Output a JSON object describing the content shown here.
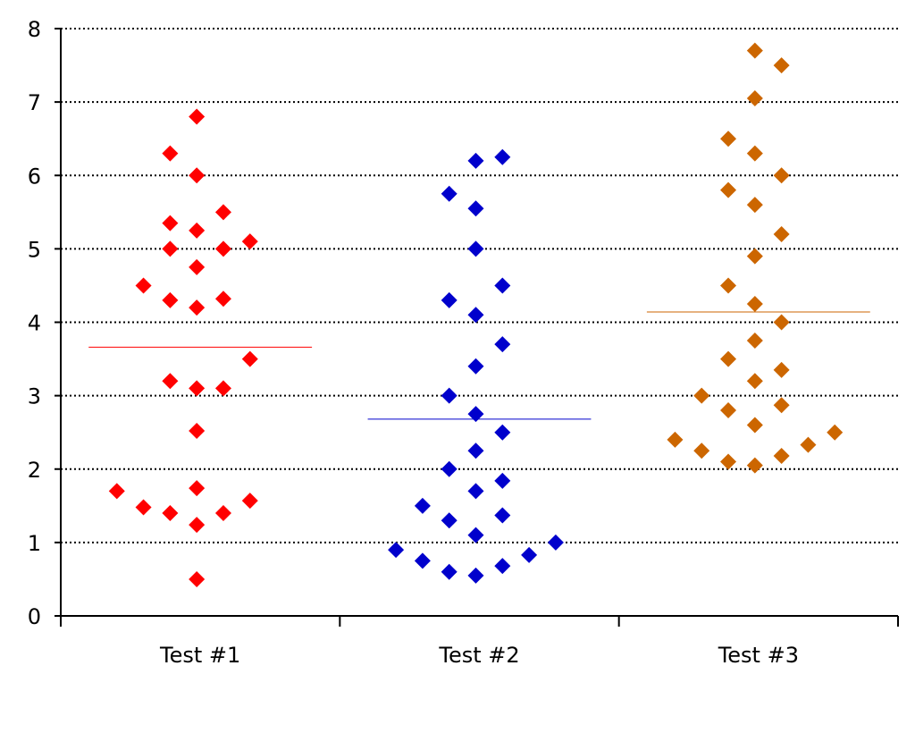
{
  "chart_data": {
    "type": "scatter",
    "title": "",
    "xlabel": "",
    "ylabel": "",
    "ylim": [
      0,
      8
    ],
    "yticks": [
      0,
      1,
      2,
      3,
      4,
      5,
      6,
      7,
      8
    ],
    "grid": "horizontal dotted",
    "categories": [
      "Test #1",
      "Test #2",
      "Test #3"
    ],
    "series": [
      {
        "category": "Test #1",
        "color": "#ff0000",
        "mean": 3.66,
        "points": [
          [
            0,
            6.8
          ],
          [
            -1,
            6.3
          ],
          [
            0,
            6.0
          ],
          [
            -1,
            5.35
          ],
          [
            1,
            5.5
          ],
          [
            0,
            5.25
          ],
          [
            -1,
            5.0
          ],
          [
            1,
            5.0
          ],
          [
            2,
            5.1
          ],
          [
            0,
            4.75
          ],
          [
            -2,
            4.5
          ],
          [
            -1,
            4.3
          ],
          [
            1,
            4.32
          ],
          [
            0,
            4.2
          ],
          [
            2,
            3.5
          ],
          [
            -1,
            3.2
          ],
          [
            0,
            3.1
          ],
          [
            1,
            3.1
          ],
          [
            0,
            2.52
          ],
          [
            -3,
            1.7
          ],
          [
            0,
            1.74
          ],
          [
            2,
            1.57
          ],
          [
            -2,
            1.48
          ],
          [
            -1,
            1.4
          ],
          [
            1,
            1.4
          ],
          [
            0,
            1.24
          ],
          [
            0,
            0.5
          ]
        ]
      },
      {
        "category": "Test #2",
        "color": "#0000cc",
        "mean": 2.68,
        "points": [
          [
            1,
            6.25
          ],
          [
            0,
            6.2
          ],
          [
            -1,
            5.75
          ],
          [
            0,
            5.55
          ],
          [
            0,
            5.0
          ],
          [
            1,
            4.5
          ],
          [
            -1,
            4.3
          ],
          [
            0,
            4.1
          ],
          [
            1,
            3.7
          ],
          [
            0,
            3.4
          ],
          [
            -1,
            3.0
          ],
          [
            0,
            2.75
          ],
          [
            1,
            2.5
          ],
          [
            0,
            2.25
          ],
          [
            -1,
            2.0
          ],
          [
            1,
            1.84
          ],
          [
            0,
            1.7
          ],
          [
            -2,
            1.5
          ],
          [
            1,
            1.37
          ],
          [
            -1,
            1.3
          ],
          [
            0,
            1.1
          ],
          [
            3,
            1.0
          ],
          [
            -3,
            0.9
          ],
          [
            2,
            0.83
          ],
          [
            -2,
            0.75
          ],
          [
            1,
            0.68
          ],
          [
            -1,
            0.6
          ],
          [
            0,
            0.55
          ]
        ]
      },
      {
        "category": "Test #3",
        "color": "#cc6600",
        "mean": 4.14,
        "points": [
          [
            0,
            7.7
          ],
          [
            1,
            7.5
          ],
          [
            0,
            7.05
          ],
          [
            -1,
            6.5
          ],
          [
            0,
            6.3
          ],
          [
            1,
            6.0
          ],
          [
            -1,
            5.8
          ],
          [
            0,
            5.6
          ],
          [
            1,
            5.2
          ],
          [
            0,
            4.9
          ],
          [
            -1,
            4.5
          ],
          [
            0,
            4.25
          ],
          [
            1,
            4.0
          ],
          [
            0,
            3.75
          ],
          [
            -1,
            3.5
          ],
          [
            1,
            3.35
          ],
          [
            0,
            3.2
          ],
          [
            -2,
            3.0
          ],
          [
            1,
            2.87
          ],
          [
            -1,
            2.8
          ],
          [
            0,
            2.6
          ],
          [
            3,
            2.5
          ],
          [
            -3,
            2.4
          ],
          [
            2,
            2.33
          ],
          [
            -2,
            2.25
          ],
          [
            1,
            2.18
          ],
          [
            -1,
            2.1
          ],
          [
            0,
            2.05
          ]
        ]
      }
    ]
  }
}
